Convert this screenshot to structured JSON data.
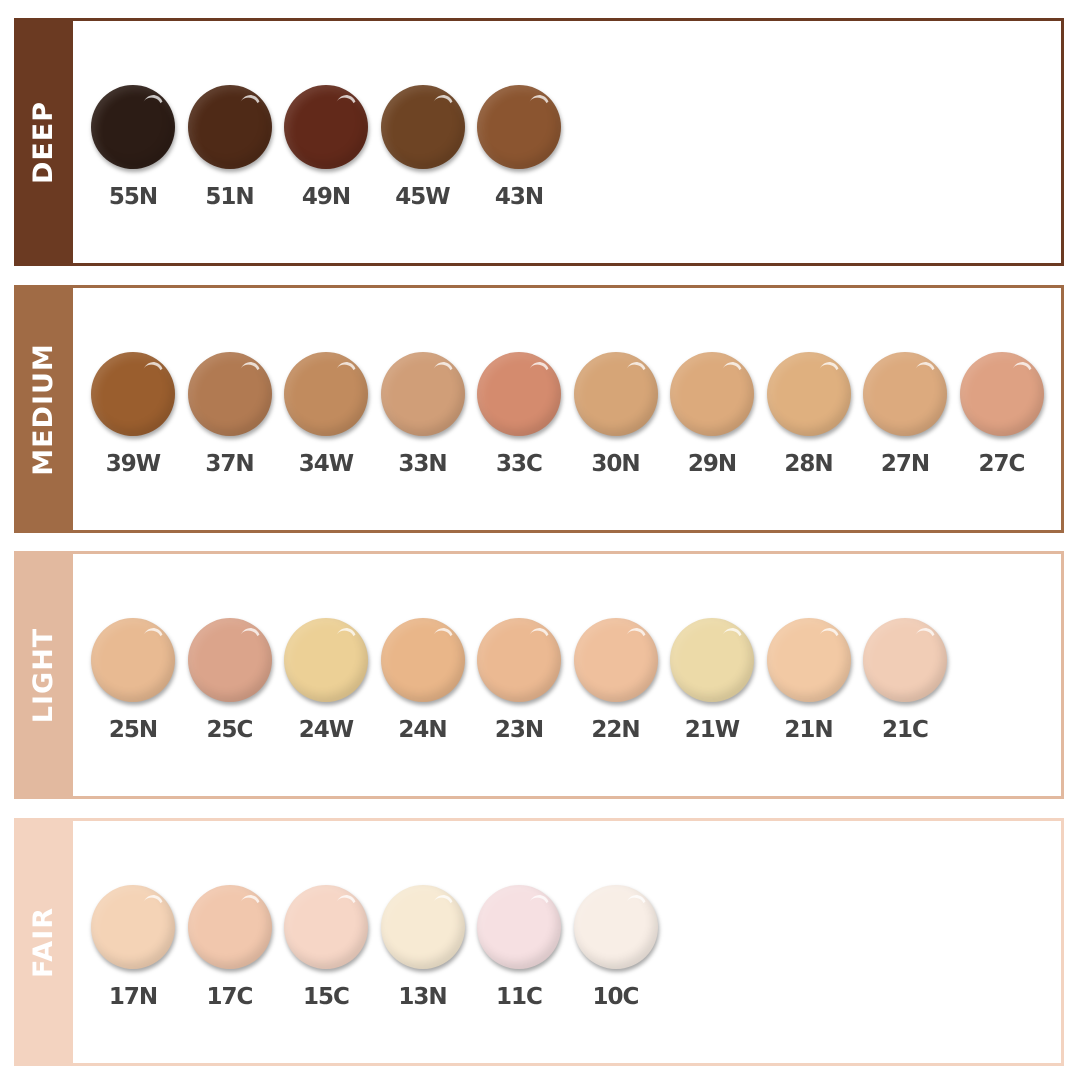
{
  "groups": [
    {
      "name": "DEEP",
      "color": "#6b3a22",
      "swatches": [
        {
          "code": "55N",
          "color": "#2c1c15"
        },
        {
          "code": "51N",
          "color": "#4f2a17"
        },
        {
          "code": "49N",
          "color": "#62291a"
        },
        {
          "code": "45W",
          "color": "#6e4424"
        },
        {
          "code": "43N",
          "color": "#8b5530"
        }
      ]
    },
    {
      "name": "MEDIUM",
      "color": "#a06b45",
      "swatches": [
        {
          "code": "39W",
          "color": "#9a5e2e"
        },
        {
          "code": "37N",
          "color": "#b17a52"
        },
        {
          "code": "34W",
          "color": "#c18b5e"
        },
        {
          "code": "33N",
          "color": "#d09e78"
        },
        {
          "code": "33C",
          "color": "#d48b6e"
        },
        {
          "code": "30N",
          "color": "#d6a577"
        },
        {
          "code": "29N",
          "color": "#dcaa7c"
        },
        {
          "code": "28N",
          "color": "#dfb07f"
        },
        {
          "code": "27N",
          "color": "#dcaa7e"
        },
        {
          "code": "27C",
          "color": "#dea183"
        }
      ]
    },
    {
      "name": "LIGHT",
      "color": "#e2b99f",
      "swatches": [
        {
          "code": "25N",
          "color": "#e8ba92"
        },
        {
          "code": "25C",
          "color": "#dba48b"
        },
        {
          "code": "24W",
          "color": "#ecd096"
        },
        {
          "code": "24N",
          "color": "#e9b689"
        },
        {
          "code": "23N",
          "color": "#ebb992"
        },
        {
          "code": "22N",
          "color": "#efc09d"
        },
        {
          "code": "21W",
          "color": "#ecdaa8"
        },
        {
          "code": "21N",
          "color": "#f2c9a4"
        },
        {
          "code": "21C",
          "color": "#f1cdb6"
        }
      ]
    },
    {
      "name": "FAIR",
      "color": "#f3d3c0",
      "swatches": [
        {
          "code": "17N",
          "color": "#f4d3b6"
        },
        {
          "code": "17C",
          "color": "#f1c7ad"
        },
        {
          "code": "15C",
          "color": "#f6d6c6"
        },
        {
          "code": "13N",
          "color": "#f7ead3"
        },
        {
          "code": "11C",
          "color": "#f6e0e2"
        },
        {
          "code": "10C",
          "color": "#f8eee6"
        }
      ]
    }
  ]
}
